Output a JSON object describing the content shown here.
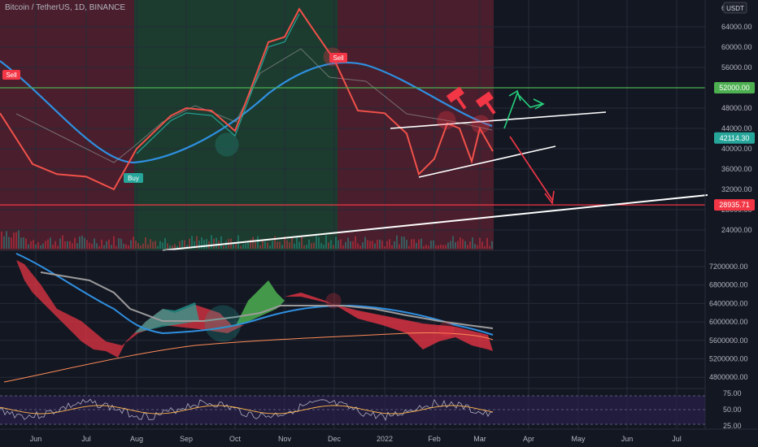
{
  "header": {
    "symbol": "Bitcoin / TetherUS, 1D, BINANCE",
    "currency": "USDT"
  },
  "price_axis": {
    "ticks": [
      "68",
      "64000.00",
      "60000.00",
      "56000.00",
      "52000.00",
      "48000.00",
      "44000.00",
      "40000.00",
      "36000.00",
      "32000.00",
      "28000.00",
      "24000.00"
    ]
  },
  "price_badges": [
    {
      "label": "52000.00",
      "value": 52000,
      "color": "#4caf50"
    },
    {
      "label": "42114.30",
      "value": 42114.3,
      "color": "#26a69a"
    },
    {
      "label": "28935.71",
      "value": 28935.71,
      "color": "#f23645"
    }
  ],
  "signals": [
    {
      "label": "Sell",
      "color": "#f23645"
    },
    {
      "label": "Buy",
      "color": "#26a69a"
    },
    {
      "label": "Sell",
      "color": "#f23645"
    }
  ],
  "indicator_axis": {
    "ticks": [
      "7200000.00",
      "6800000.00",
      "6400000.00",
      "6000000.00",
      "5600000.00",
      "5200000.00",
      "4800000.00"
    ]
  },
  "rsi_axis": {
    "ticks": [
      "75.00",
      "50.00",
      "25.00"
    ]
  },
  "time_axis": {
    "labels": [
      "Jun",
      "Jul",
      "Aug",
      "Sep",
      "Oct",
      "Nov",
      "Dec",
      "2022",
      "Feb",
      "Mar",
      "Apr",
      "May",
      "Jun",
      "Jul"
    ]
  },
  "chart_data": {
    "type": "line",
    "x": [
      "May 16",
      "Jun 1",
      "Jun 16",
      "Jul 1",
      "Jul 16",
      "Aug 1",
      "Aug 16",
      "Sep 1",
      "Sep 16",
      "Oct 1",
      "Oct 16",
      "Nov 1",
      "Nov 10",
      "Nov 16",
      "Dec 1",
      "Dec 16",
      "Jan 1",
      "Jan 16",
      "Jan 24",
      "Feb 1",
      "Feb 10",
      "Feb 16",
      "Feb 24",
      "Mar 1",
      "Mar 6"
    ],
    "series": [
      {
        "values": [
          47000,
          37000,
          35000,
          34500,
          32000,
          40000,
          46500,
          48000,
          47500,
          43500,
          61000,
          62000,
          67500,
          63500,
          57500,
          47500,
          47000,
          43000,
          35000,
          38000,
          45000,
          44000,
          37500,
          44000,
          39500
        ]
      }
    ],
    "ylim": [
      20500,
      68500
    ],
    "grid": true
  }
}
